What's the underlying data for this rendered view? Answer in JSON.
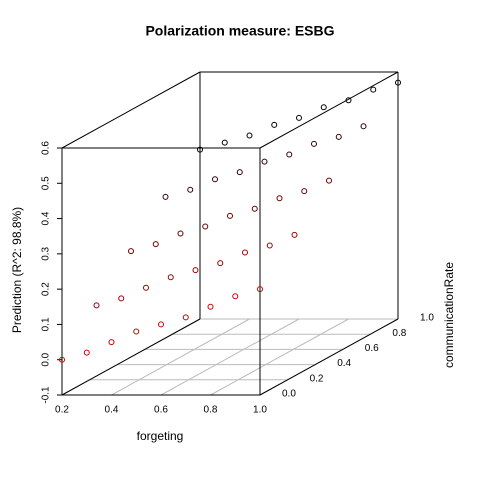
{
  "chart_data": {
    "type": "scatter3d",
    "title": "Polarization measure: ESBG",
    "x_label": "forgeting",
    "y_label": "communicationRate",
    "z_label": "Prediction (R^2: 98.8%)",
    "xlim": [
      0.2,
      1.0
    ],
    "xticks": [
      {
        "value": 0.2,
        "label": "0.2"
      },
      {
        "value": 0.4,
        "label": "0.4"
      },
      {
        "value": 0.6,
        "label": "0.6"
      },
      {
        "value": 0.8,
        "label": "0.8"
      },
      {
        "value": 1.0,
        "label": "1.0"
      }
    ],
    "ylim": [
      0.0,
      1.0
    ],
    "yticks": [
      {
        "value": 0.0,
        "label": "0.0"
      },
      {
        "value": 0.2,
        "label": "0.2"
      },
      {
        "value": 0.4,
        "label": "0.4"
      },
      {
        "value": 0.6,
        "label": "0.6"
      },
      {
        "value": 0.8,
        "label": "0.8"
      },
      {
        "value": 1.0,
        "label": "1.0"
      }
    ],
    "zlim": [
      -0.1,
      0.6
    ],
    "zticks": [
      {
        "value": -0.1,
        "label": "-0.1"
      },
      {
        "value": 0.0,
        "label": "0.0"
      },
      0.1,
      0.2,
      0.3,
      0.4,
      0.5,
      0.6
    ],
    "colors": {
      "front": "#cc0000",
      "back": "#000000"
    },
    "x": [
      0.2,
      0.3,
      0.4,
      0.5,
      0.6,
      0.7,
      0.8,
      0.9,
      1.0,
      0.2,
      0.3,
      0.4,
      0.5,
      0.6,
      0.7,
      0.8,
      0.9,
      1.0,
      0.2,
      0.3,
      0.4,
      0.5,
      0.6,
      0.7,
      0.8,
      0.9,
      1.0,
      0.2,
      0.3,
      0.4,
      0.5,
      0.6,
      0.7,
      0.8,
      0.9,
      1.0,
      0.2,
      0.3,
      0.4,
      0.5,
      0.6,
      0.7,
      0.8,
      0.9,
      1.0
    ],
    "y": [
      0,
      0,
      0,
      0,
      0,
      0,
      0,
      0,
      0,
      0.25,
      0.25,
      0.25,
      0.25,
      0.25,
      0.25,
      0.25,
      0.25,
      0.25,
      0.5,
      0.5,
      0.5,
      0.5,
      0.5,
      0.5,
      0.5,
      0.5,
      0.5,
      0.75,
      0.75,
      0.75,
      0.75,
      0.75,
      0.75,
      0.75,
      0.75,
      0.75,
      1,
      1,
      1,
      1,
      1,
      1,
      1,
      1,
      1
    ],
    "z": [
      0.0,
      0.02,
      0.05,
      0.08,
      0.1,
      0.12,
      0.15,
      0.18,
      0.2,
      0.1,
      0.12,
      0.15,
      0.18,
      0.2,
      0.22,
      0.25,
      0.27,
      0.3,
      0.2,
      0.22,
      0.25,
      0.27,
      0.3,
      0.32,
      0.35,
      0.37,
      0.4,
      0.3,
      0.32,
      0.35,
      0.37,
      0.4,
      0.42,
      0.45,
      0.47,
      0.5,
      0.38,
      0.4,
      0.42,
      0.45,
      0.47,
      0.5,
      0.52,
      0.55,
      0.57
    ]
  }
}
